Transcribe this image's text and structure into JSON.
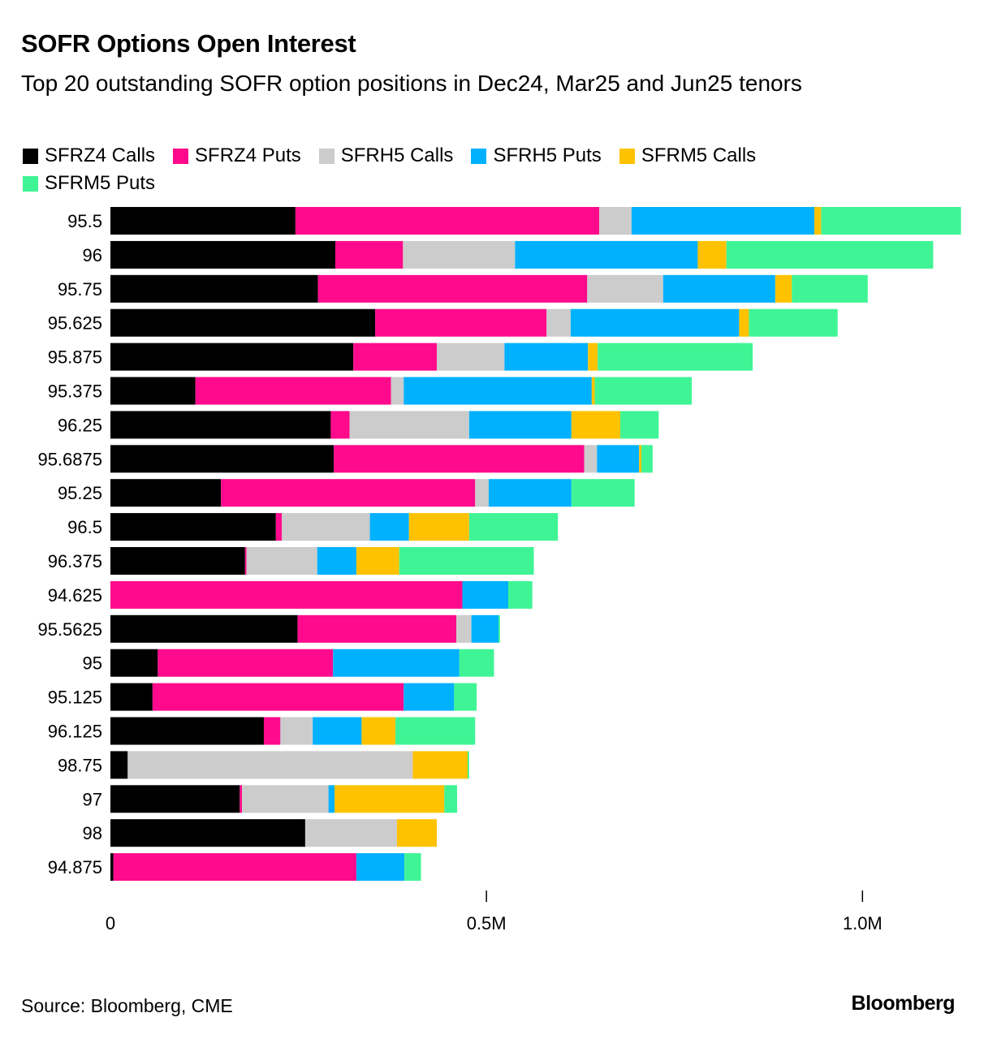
{
  "header": {
    "title": "SOFR Options Open Interest",
    "subtitle": "Top 20 outstanding SOFR option positions in Dec24, Mar25 and Jun25 tenors"
  },
  "legend": [
    {
      "label": "SFRZ4 Calls",
      "color": "#000000"
    },
    {
      "label": "SFRZ4 Puts",
      "color": "#ff0a8c"
    },
    {
      "label": "SFRH5 Calls",
      "color": "#cccccc"
    },
    {
      "label": "SFRH5 Puts",
      "color": "#00b1ff"
    },
    {
      "label": "SFRM5 Calls",
      "color": "#ffc200"
    },
    {
      "label": "SFRM5 Puts",
      "color": "#3ff495"
    }
  ],
  "chart_data": {
    "type": "bar",
    "orientation": "horizontal",
    "stacked": true,
    "title": "SOFR Options Open Interest",
    "subtitle": "Top 20 outstanding SOFR option positions in Dec24, Mar25 and Jun25 tenors",
    "categories": [
      "95.5",
      "96",
      "95.75",
      "95.625",
      "95.875",
      "95.375",
      "96.25",
      "95.6875",
      "95.25",
      "96.5",
      "96.375",
      "94.625",
      "95.5625",
      "95",
      "95.125",
      "96.125",
      "98.75",
      "97",
      "98",
      "94.875"
    ],
    "series": [
      {
        "name": "SFRZ4 Calls",
        "color": "#000000",
        "values": [
          246000,
          299000,
          276000,
          352000,
          323000,
          113000,
          293000,
          297000,
          147000,
          220000,
          179000,
          0,
          249000,
          63000,
          56000,
          204000,
          23000,
          172000,
          259000,
          4000
        ]
      },
      {
        "name": "SFRZ4 Puts",
        "color": "#ff0a8c",
        "values": [
          404000,
          90000,
          358000,
          228000,
          111000,
          260000,
          25000,
          333000,
          338000,
          8000,
          2000,
          468000,
          211000,
          233000,
          334000,
          22000,
          0,
          3000,
          0,
          323000
        ]
      },
      {
        "name": "SFRH5 Calls",
        "color": "#cccccc",
        "values": [
          43000,
          149000,
          101000,
          32000,
          90000,
          17000,
          159000,
          17000,
          18000,
          117000,
          94000,
          0,
          20000,
          0,
          0,
          43000,
          379000,
          115000,
          122000,
          0
        ]
      },
      {
        "name": "SFRH5 Puts",
        "color": "#00b1ff",
        "values": [
          243000,
          243000,
          149000,
          224000,
          111000,
          250000,
          136000,
          56000,
          110000,
          52000,
          52000,
          61000,
          36000,
          168000,
          67000,
          65000,
          0,
          8000,
          0,
          64000
        ]
      },
      {
        "name": "SFRM5 Calls",
        "color": "#ffc200",
        "values": [
          9000,
          38000,
          22000,
          13000,
          13000,
          4000,
          65000,
          3000,
          0,
          80000,
          57000,
          0,
          0,
          0,
          0,
          45000,
          73000,
          146000,
          53000,
          0
        ]
      },
      {
        "name": "SFRM5 Puts",
        "color": "#3ff495",
        "values": [
          186000,
          275000,
          101000,
          118000,
          206000,
          129000,
          51000,
          15000,
          84000,
          118000,
          179000,
          32000,
          2000,
          46000,
          30000,
          106000,
          2000,
          17000,
          0,
          22000
        ]
      }
    ],
    "xlim": [
      0,
      1140000
    ],
    "x_ticks": [
      {
        "value": 0,
        "label": "0"
      },
      {
        "value": 500000,
        "label": "0.5M"
      },
      {
        "value": 1000000,
        "label": "1.0M"
      }
    ],
    "xlabel": "",
    "ylabel": "",
    "grid": false
  },
  "footer": {
    "source": "Source: Bloomberg, CME",
    "brand": "Bloomberg"
  }
}
